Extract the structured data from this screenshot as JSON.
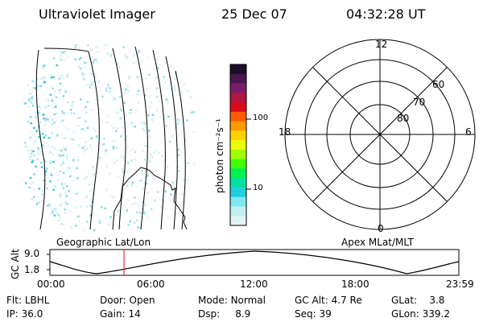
{
  "header": {
    "instrument": "Ultraviolet Imager",
    "date": "25 Dec 07",
    "time": "04:32:28 UT"
  },
  "colorbar": {
    "label": "photon cm⁻²s⁻¹",
    "ticks": [
      "100",
      "10"
    ],
    "colors": [
      "#1a0f2a",
      "#4a1650",
      "#7a1e6a",
      "#b01740",
      "#d80a1e",
      "#ff5a00",
      "#ff9a00",
      "#ffd000",
      "#e8ff00",
      "#a0ff00",
      "#40ff00",
      "#00f050",
      "#00e0a0",
      "#20d0e0",
      "#80e8f0",
      "#c0f0f0",
      "#e0f4f4"
    ]
  },
  "polar": {
    "mlt_labels": {
      "top": "12",
      "left": "18",
      "right": "6",
      "bottom": "0"
    },
    "lat_labels": [
      "60",
      "70",
      "80"
    ]
  },
  "timeline": {
    "left_title": "Geographic Lat/Lon",
    "right_title": "Apex MLat/MLT",
    "axis_label": "GC Alt",
    "y_ticks": [
      "9.0",
      "1.8"
    ],
    "x_ticks": [
      "00:00",
      "06:00",
      "12:00",
      "18:00",
      "23:59"
    ],
    "marker_color": "#ff0000"
  },
  "status": {
    "row1": [
      {
        "label": "Flt:",
        "value": "LBHL"
      },
      {
        "label": "Door:",
        "value": "Open"
      },
      {
        "label": "Mode:",
        "value": "Normal"
      },
      {
        "label": "GC Alt:",
        "value": "4.7 Re"
      },
      {
        "label": "GLat:",
        "value": "3.8"
      }
    ],
    "row2": [
      {
        "label": "IP:",
        "value": "36.0"
      },
      {
        "label": "Gain:",
        "value": "14"
      },
      {
        "label": "Dsp:",
        "value": "8.9"
      },
      {
        "label": "Seq:",
        "value": "39"
      },
      {
        "label": "GLon:",
        "value": "339.2"
      }
    ]
  }
}
